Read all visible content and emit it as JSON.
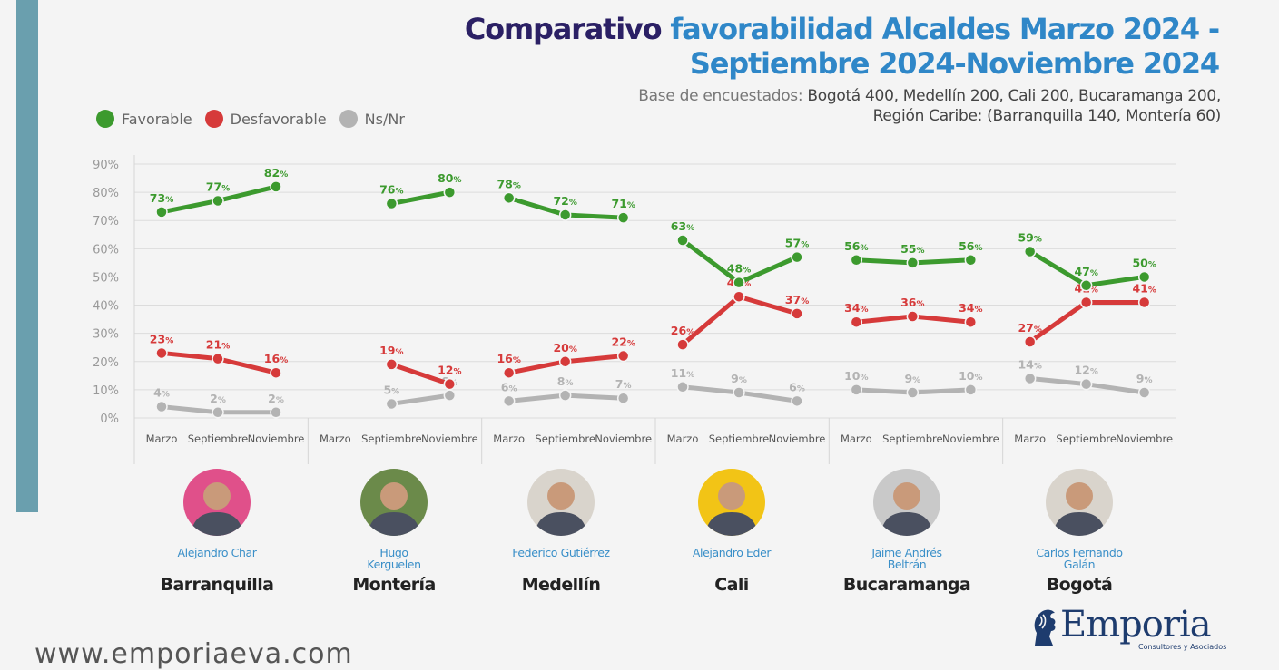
{
  "title": {
    "line1_prefix": "Comparativo ",
    "line1_highlight": "favorabilidad Alcaldes Marzo 2024 -",
    "line2": "Septiembre 2024-Noviembre 2024"
  },
  "subtitle": {
    "label": "Base de encuestados: ",
    "line1_rest": "Bogotá 400, Medellín 200, Cali 200, Bucaramanga 200,",
    "line2": "Región Caribe: (Barranquilla 140, Montería 60)"
  },
  "legend": [
    {
      "label": "Favorable",
      "color": "#3c9a2e"
    },
    {
      "label": "Desfavorable",
      "color": "#d63a3a"
    },
    {
      "label": "Ns/Nr",
      "color": "#b3b3b3"
    }
  ],
  "chart_data": {
    "type": "line",
    "yticks": [
      "90%",
      "80%",
      "70%",
      "60%",
      "50%",
      "40%",
      "30%",
      "20%",
      "10%",
      "0%"
    ],
    "ylim": [
      0,
      90
    ],
    "grid": true,
    "legend_position": "top-left",
    "series_colors": {
      "favorable": "#3c9a2e",
      "desfavorable": "#d63a3a",
      "nsnr": "#b3b3b3"
    },
    "label_suffix": "%",
    "panels": [
      {
        "city": "Barranquilla",
        "mayor": [
          "Alejandro Char"
        ],
        "categories": [
          "Marzo",
          "Septiembre",
          "Noviembre"
        ],
        "favorable": [
          73,
          77,
          82
        ],
        "desfavorable": [
          23,
          21,
          16
        ],
        "nsnr": [
          4,
          2,
          2
        ]
      },
      {
        "city": "Montería",
        "mayor": [
          "Hugo",
          "Kerguelen"
        ],
        "categories": [
          "Marzo",
          "Septiembre",
          "Noviembre"
        ],
        "favorable": [
          null,
          76,
          80
        ],
        "desfavorable": [
          null,
          19,
          12
        ],
        "nsnr": [
          null,
          5,
          8
        ]
      },
      {
        "city": "Medellín",
        "mayor": [
          "Federico Gutiérrez"
        ],
        "categories": [
          "Marzo",
          "Septiembre",
          "Noviembre"
        ],
        "favorable": [
          78,
          72,
          71
        ],
        "desfavorable": [
          16,
          20,
          22
        ],
        "nsnr": [
          6,
          8,
          7
        ]
      },
      {
        "city": "Cali",
        "mayor": [
          "Alejandro Eder"
        ],
        "categories": [
          "Marzo",
          "Septiembre",
          "Noviembre"
        ],
        "favorable": [
          63,
          48,
          57
        ],
        "desfavorable": [
          26,
          43,
          37
        ],
        "nsnr": [
          11,
          9,
          6
        ]
      },
      {
        "city": "Bucaramanga",
        "mayor": [
          "Jaime Andrés",
          "Beltrán"
        ],
        "categories": [
          "Marzo",
          "Septiembre",
          "Noviembre"
        ],
        "favorable": [
          56,
          55,
          56
        ],
        "desfavorable": [
          34,
          36,
          34
        ],
        "nsnr": [
          10,
          9,
          10
        ]
      },
      {
        "city": "Bogotá",
        "mayor": [
          "Carlos Fernando",
          "Galán"
        ],
        "categories": [
          "Marzo",
          "Septiembre",
          "Noviembre"
        ],
        "favorable": [
          59,
          47,
          50
        ],
        "desfavorable": [
          27,
          41,
          41
        ],
        "nsnr": [
          14,
          12,
          9
        ]
      }
    ]
  },
  "avatar_colors": [
    "#e0508a",
    "#6b8a4a",
    "#d9d4cc",
    "#f2c416",
    "#c9c9c9",
    "#d9d4cc"
  ],
  "logo": {
    "name": "Emporia",
    "tagline": "Consultores y Asociados"
  },
  "footer": {
    "url": "www.emporiaeva.com"
  }
}
